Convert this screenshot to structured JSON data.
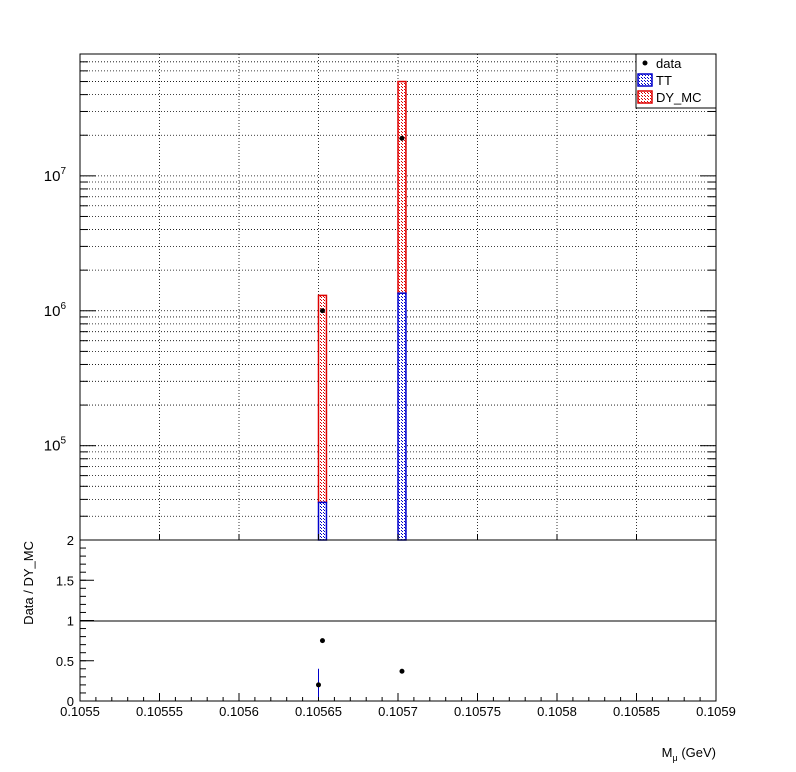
{
  "chart_data": [
    {
      "type": "bar",
      "panel": "main",
      "y_scale": "log",
      "ylim": [
        20000,
        80000000
      ],
      "xlim": [
        0.1055,
        0.1059
      ],
      "grid": true,
      "legend_position": "top-right",
      "y_tick_labels": [
        {
          "base": "10",
          "exp": "5",
          "value": 100000
        },
        {
          "base": "10",
          "exp": "6",
          "value": 1000000
        },
        {
          "base": "10",
          "exp": "7",
          "value": 10000000
        }
      ],
      "legend": [
        {
          "label": "data",
          "kind": "marker",
          "color": "#000000"
        },
        {
          "label": "TT",
          "kind": "box",
          "color": "#0000cc"
        },
        {
          "label": "DY_MC",
          "kind": "box",
          "color": "#dd0000"
        }
      ],
      "bins": [
        {
          "x0": 0.10565,
          "x1": 0.105655,
          "TT": 38000,
          "DY_MC": 1300000,
          "data": 1000000
        },
        {
          "x0": 0.1057,
          "x1": 0.105705,
          "TT": 1350000,
          "DY_MC": 50000000,
          "data": 19000000
        }
      ]
    },
    {
      "type": "scatter",
      "panel": "ratio",
      "ylabel": "Data / DY_MC",
      "xlabel_base": "M",
      "xlabel_sub": "μ",
      "xlabel_unit": " (GeV)",
      "ylim": [
        0,
        2
      ],
      "xlim": [
        0.1055,
        0.1059
      ],
      "reference_line": 1,
      "y_ticks": [
        "0",
        "0.5",
        "1",
        "1.5",
        "2"
      ],
      "y_tick_values": [
        0,
        0.5,
        1,
        1.5,
        2
      ],
      "x_ticks": [
        "0.1055",
        "0.10555",
        "0.1056",
        "0.10565",
        "0.1057",
        "0.10575",
        "0.1058",
        "0.10585",
        "0.1059"
      ],
      "x_tick_values": [
        0.1055,
        0.10555,
        0.1056,
        0.10565,
        0.1057,
        0.10575,
        0.1058,
        0.10585,
        0.1059
      ],
      "points": [
        {
          "x": 0.10565,
          "y": 0.2,
          "err": 0.2
        },
        {
          "x": 0.1056525,
          "y": 0.75,
          "err": 0.0
        },
        {
          "x": 0.1057025,
          "y": 0.37,
          "err": 0.0
        }
      ]
    }
  ]
}
